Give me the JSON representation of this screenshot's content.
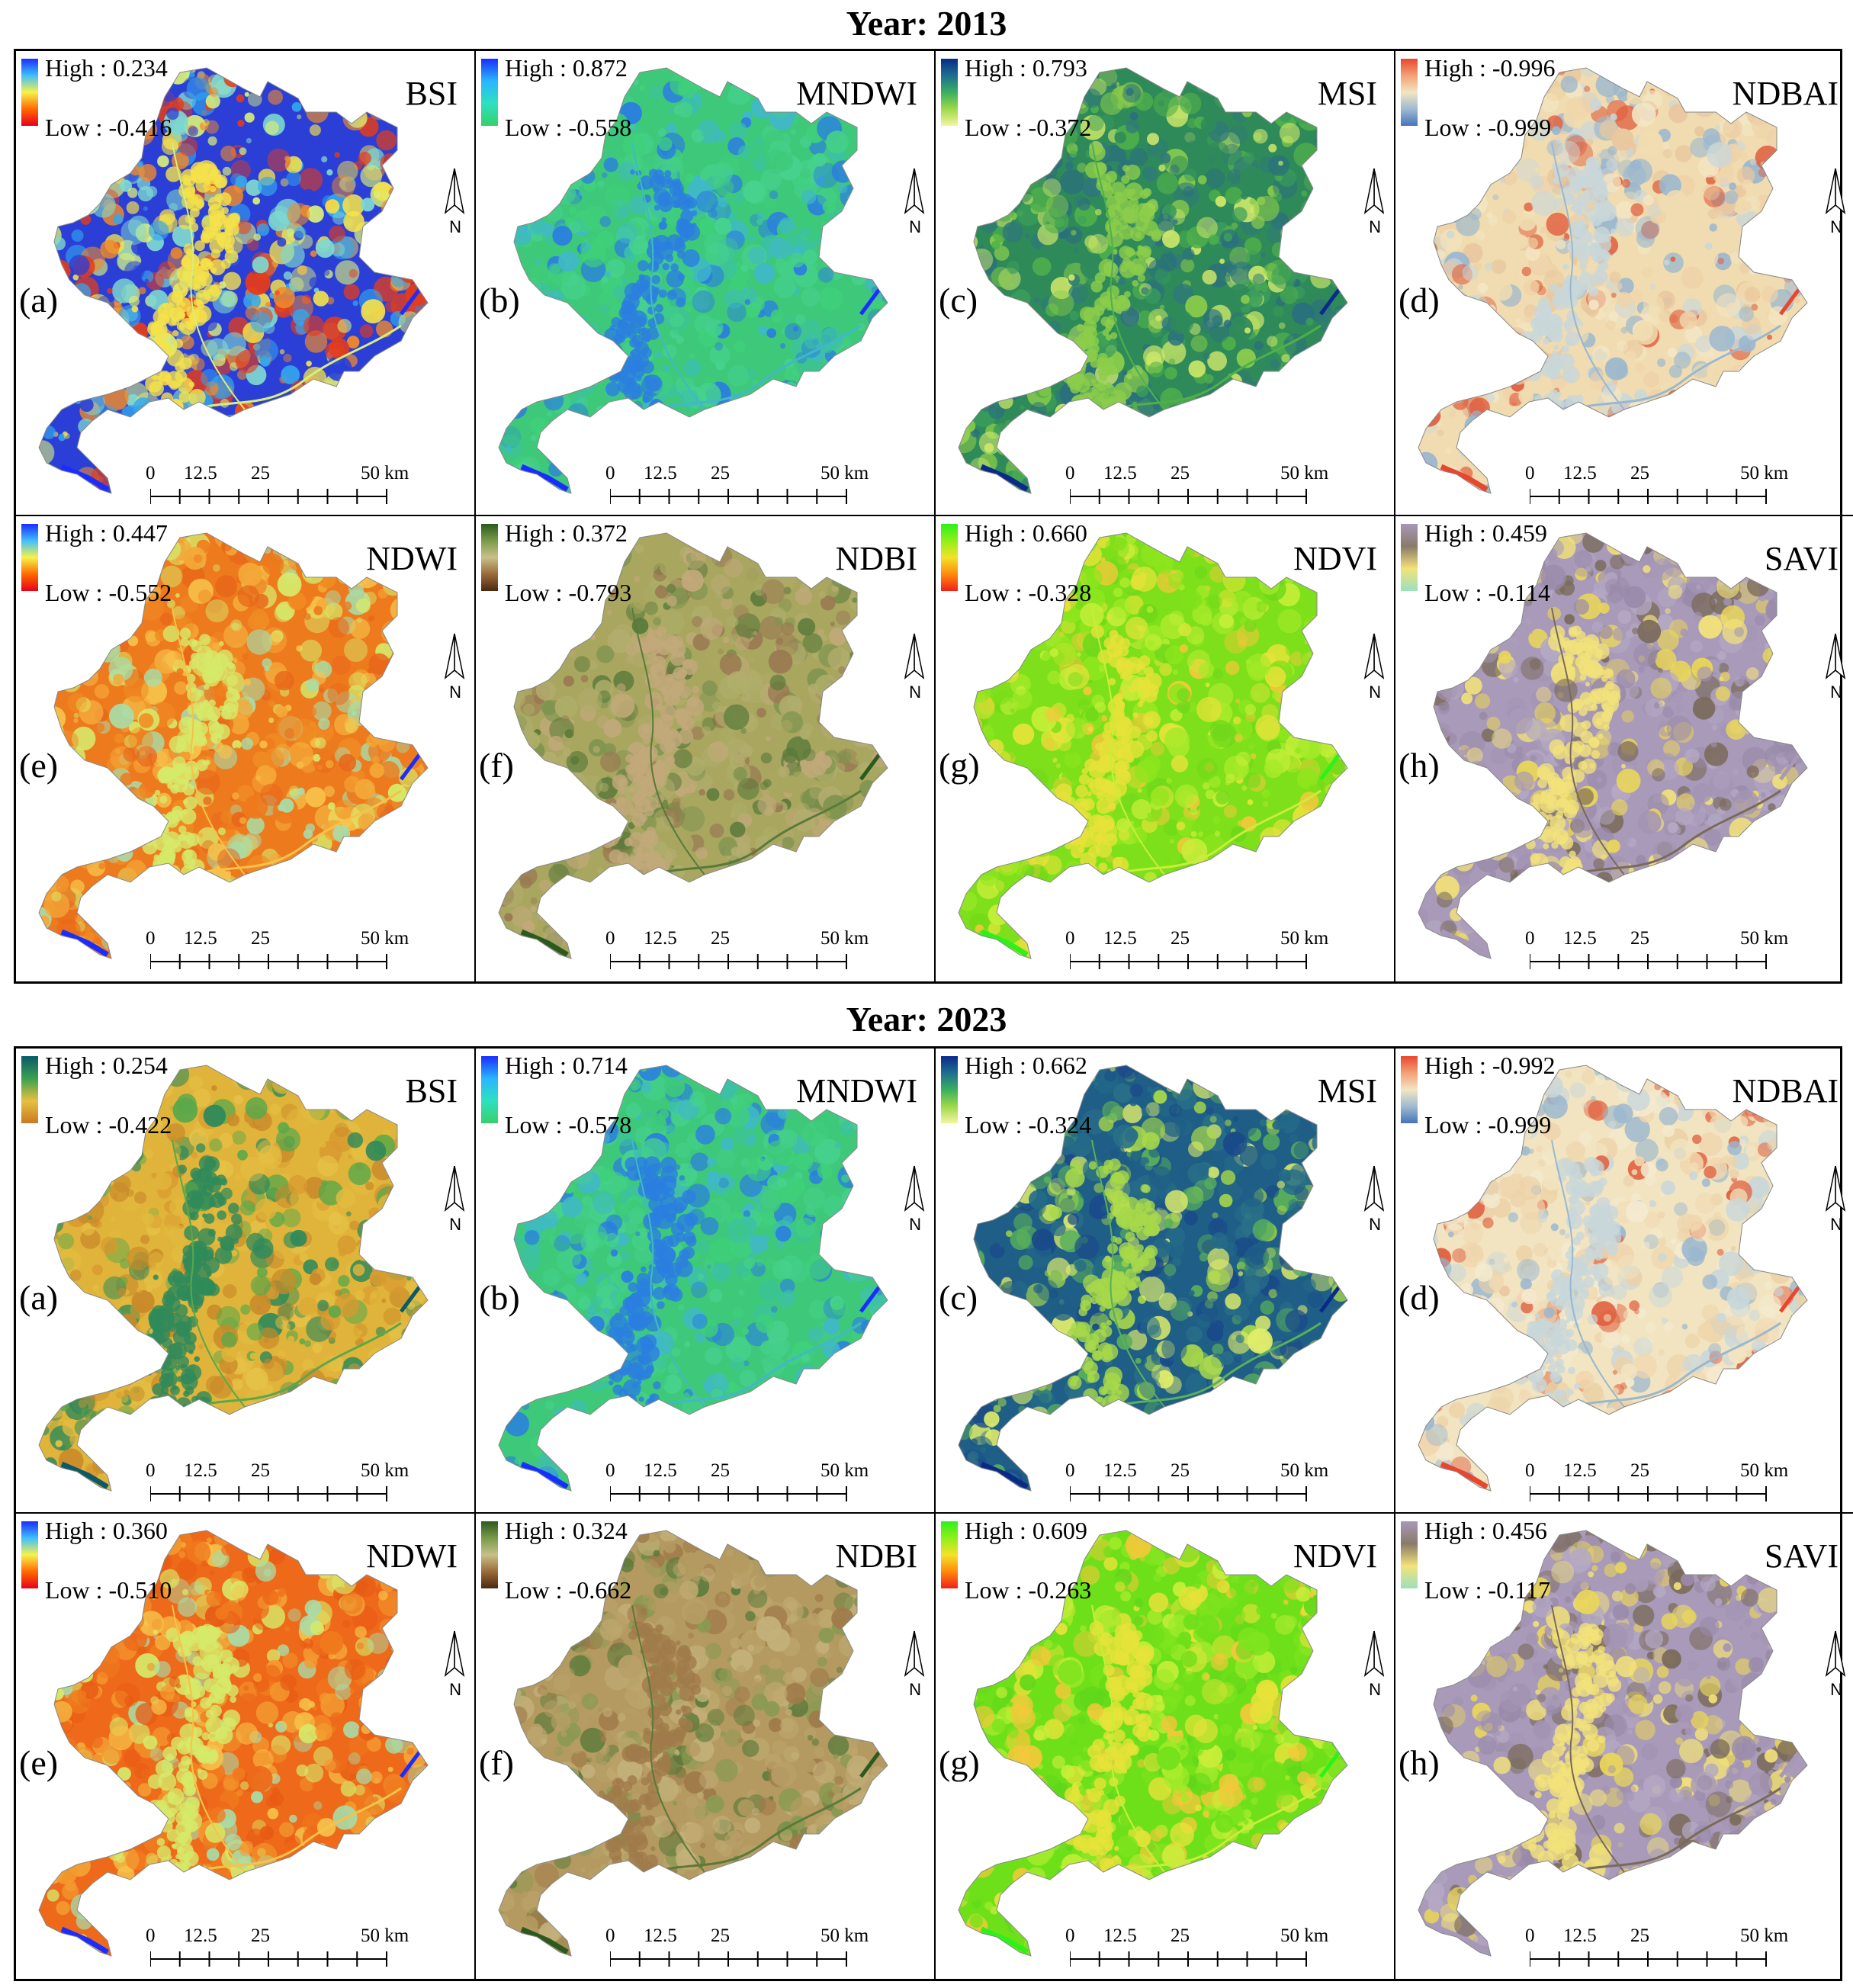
{
  "figure": {
    "sections": [
      {
        "year_title": "Year: 2013",
        "panels": [
          {
            "letter": "(a)",
            "index": "BSI",
            "high": "High : 0.234",
            "low": "Low : -0.416",
            "colors": [
              "#2b3fd6",
              "#33a6ee",
              "#7fd8d0",
              "#d8ee7a",
              "#f5e24a",
              "#f08a2a",
              "#e53c1a"
            ],
            "ramp": [
              "#1a2dff",
              "#3fbfff",
              "#f7f24a",
              "#ff6a00",
              "#e8001a"
            ]
          },
          {
            "letter": "(b)",
            "index": "MNDWI",
            "high": "High : 0.872",
            "low": "Low : -0.558",
            "colors": [
              "#3ec97a",
              "#45cf8a",
              "#3cc0a8",
              "#40b8c8",
              "#2a7ee0",
              "#3fd07a",
              "#47d28e"
            ],
            "ramp": [
              "#1a2dff",
              "#29b6ff",
              "#2ee0c0",
              "#38d06a"
            ]
          },
          {
            "letter": "(c)",
            "index": "MSI",
            "high": "High : 0.793",
            "low": "Low : -0.372",
            "colors": [
              "#2f8a5a",
              "#3a9c5a",
              "#2a6e80",
              "#4fb04a",
              "#8ccd4a",
              "#cfe86a",
              "#2f7a78"
            ],
            "ramp": [
              "#0a2a8a",
              "#1f6e8e",
              "#38b060",
              "#9ed84a",
              "#f4f6a0"
            ]
          },
          {
            "letter": "(d)",
            "index": "NDBAI",
            "high": "High : -0.996",
            "low": "Low : -0.999",
            "colors": [
              "#f0dcb0",
              "#f3e6c4",
              "#e9c79e",
              "#9ab7cf",
              "#c9d7da",
              "#e06040",
              "#f0d2a8"
            ],
            "ramp": [
              "#e8472e",
              "#f3a077",
              "#f2e6c0",
              "#9fbad2",
              "#4674b8"
            ]
          },
          {
            "letter": "(e)",
            "index": "NDWI",
            "high": "High : 0.447",
            "low": "Low : -0.552",
            "colors": [
              "#ee7a1e",
              "#f08c24",
              "#f3a838",
              "#f6c24a",
              "#d6ea6a",
              "#a8dca8",
              "#e8671a"
            ],
            "ramp": [
              "#1a2dff",
              "#3fbfff",
              "#f7f24a",
              "#ff6a00",
              "#e8001a"
            ]
          },
          {
            "letter": "(f)",
            "index": "NDBI",
            "high": "High : 0.372",
            "low": "Low : -0.793",
            "colors": [
              "#a9a660",
              "#b3ad6e",
              "#7f9450",
              "#5a7a3a",
              "#c2a97a",
              "#9a7a52",
              "#aeae6a"
            ],
            "ramp": [
              "#2c5a1e",
              "#7a9a4a",
              "#c8c08a",
              "#9a6a3a",
              "#4a2a10"
            ]
          },
          {
            "letter": "(g)",
            "index": "NDVI",
            "high": "High : 0.660",
            "low": "Low : -0.328",
            "colors": [
              "#7ee01a",
              "#8ee61e",
              "#a6ea2a",
              "#c8ee3a",
              "#e6e23a",
              "#f2c83a",
              "#6fd81a"
            ],
            "ramp": [
              "#2ef01a",
              "#8ef01a",
              "#f4e22a",
              "#ff8a0a",
              "#f0201a"
            ]
          },
          {
            "letter": "(h)",
            "index": "SAVI",
            "high": "High : 0.459",
            "low": "Low : -0.114",
            "colors": [
              "#a89ab8",
              "#b4a8c4",
              "#9a8aaa",
              "#7a6a5a",
              "#f2e27a",
              "#e9d65a",
              "#a494b4"
            ],
            "ramp": [
              "#a898b8",
              "#8a7a6a",
              "#f4e27a",
              "#9ae0c0"
            ]
          }
        ]
      },
      {
        "year_title": "Year: 2023",
        "panels": [
          {
            "letter": "(a)",
            "index": "BSI",
            "high": "High : 0.254",
            "low": "Low : -0.422",
            "colors": [
              "#e0b43a",
              "#e6c248",
              "#d89a30",
              "#5aa84a",
              "#2f8a5a",
              "#c98a2a",
              "#e2bc40"
            ],
            "ramp": [
              "#0a5a6a",
              "#3aa050",
              "#e8c040",
              "#c87a20"
            ]
          },
          {
            "letter": "(b)",
            "index": "MNDWI",
            "high": "High : 0.714",
            "low": "Low : -0.578",
            "colors": [
              "#3ec97a",
              "#45cf8a",
              "#3cc0a8",
              "#40b8c8",
              "#2a7ee0",
              "#3fd07a",
              "#47d28e"
            ],
            "ramp": [
              "#1a2dff",
              "#29b6ff",
              "#2ee0c0",
              "#38d06a"
            ]
          },
          {
            "letter": "(c)",
            "index": "MSI",
            "high": "High : 0.662",
            "low": "Low : -0.324",
            "colors": [
              "#1f5e86",
              "#2a7088",
              "#1a4a8a",
              "#5ab05a",
              "#a8d84a",
              "#e2ee6a",
              "#246a88"
            ],
            "ramp": [
              "#0a2a8a",
              "#1f6e8e",
              "#38b060",
              "#9ed84a",
              "#f4f6a0"
            ]
          },
          {
            "letter": "(d)",
            "index": "NDBAI",
            "high": "High : -0.992",
            "low": "Low : -0.999",
            "colors": [
              "#f2e4c0",
              "#f4ead0",
              "#ecd2a8",
              "#9ab7cf",
              "#c9d7da",
              "#e06040",
              "#f0d6ae"
            ],
            "ramp": [
              "#e8472e",
              "#f3a077",
              "#f2e6c0",
              "#9fbad2",
              "#4674b8"
            ]
          },
          {
            "letter": "(e)",
            "index": "NDWI",
            "high": "High : 0.360",
            "low": "Low : -0.510",
            "colors": [
              "#ee6a1a",
              "#f07a1e",
              "#f39a30",
              "#f6c24a",
              "#d6ea6a",
              "#a8dca8",
              "#e85a14"
            ],
            "ramp": [
              "#1a2dff",
              "#3fbfff",
              "#f7f24a",
              "#ff6a00",
              "#e8001a"
            ]
          },
          {
            "letter": "(f)",
            "index": "NDBI",
            "high": "High : 0.324",
            "low": "Low : -0.662",
            "colors": [
              "#b49a60",
              "#bea86e",
              "#8a9a52",
              "#5a7a3a",
              "#a07a4a",
              "#c4b07a",
              "#b8a068"
            ],
            "ramp": [
              "#2c5a1e",
              "#7a9a4a",
              "#c8c08a",
              "#9a6a3a",
              "#4a2a10"
            ]
          },
          {
            "letter": "(g)",
            "index": "NDVI",
            "high": "High : 0.609",
            "low": "Low : -0.263",
            "colors": [
              "#6ee01a",
              "#7ee41e",
              "#a0ea2a",
              "#c8ee3a",
              "#e6e23a",
              "#f2c83a",
              "#5fd81a"
            ],
            "ramp": [
              "#2ef01a",
              "#8ef01a",
              "#f4e22a",
              "#ff8a0a",
              "#f0201a"
            ]
          },
          {
            "letter": "(h)",
            "index": "SAVI",
            "high": "High : 0.456",
            "low": "Low : -0.117",
            "colors": [
              "#a89ab8",
              "#b4a8c4",
              "#9a8aaa",
              "#7a6a5a",
              "#f2e27a",
              "#e9d65a",
              "#a494b4"
            ],
            "ramp": [
              "#a898b8",
              "#8a7a6a",
              "#f4e27a",
              "#9ae0c0"
            ]
          }
        ]
      }
    ],
    "scalebar": {
      "labels": [
        "0",
        "12.5",
        "25",
        "50 km"
      ]
    },
    "north_label": "N",
    "north_icon": "north-arrow-icon"
  }
}
